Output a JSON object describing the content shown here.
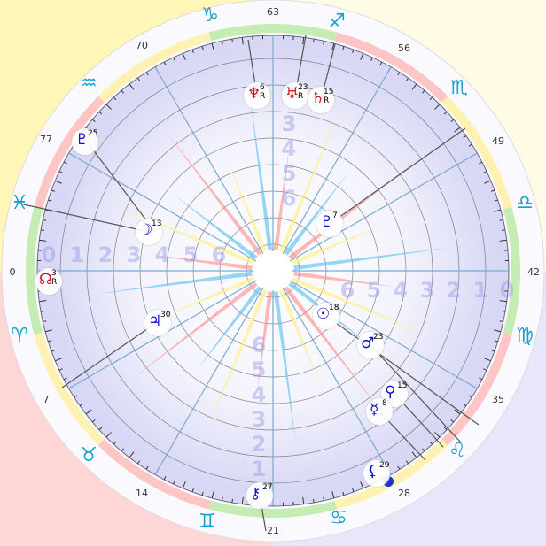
{
  "background_corners": {
    "top_left": "#fff6b8",
    "top_right": "#fffbe6",
    "bottom_left": "#ffd6d6",
    "bottom_right": "#e8e6fa"
  },
  "colors": {
    "disc": "#d8d8f6",
    "sign_glyph": "#1aa0d0",
    "planet_blue": "#1010c8",
    "planet_red": "#d01010",
    "house_line": "#7aaad0"
  },
  "zodiac_signs": [
    {
      "name": "capricorn",
      "glyph": "♑"
    },
    {
      "name": "sagittarius",
      "glyph": "♐"
    },
    {
      "name": "scorpio",
      "glyph": "♏"
    },
    {
      "name": "libra",
      "glyph": "♎"
    },
    {
      "name": "virgo",
      "glyph": "♍"
    },
    {
      "name": "leo",
      "glyph": "♌"
    },
    {
      "name": "cancer",
      "glyph": "♋"
    },
    {
      "name": "gemini",
      "glyph": "♊"
    },
    {
      "name": "taurus",
      "glyph": "♉"
    },
    {
      "name": "aries",
      "glyph": "♈"
    },
    {
      "name": "pisces",
      "glyph": "♓"
    },
    {
      "name": "aquarius",
      "glyph": "♒"
    }
  ],
  "degree_labels": [
    "63",
    "56",
    "49",
    "42",
    "35",
    "28",
    "21",
    "14",
    "7",
    "0",
    "77",
    "70"
  ],
  "ring_numbers": {
    "left": [
      "0",
      "1",
      "2",
      "3",
      "4",
      "5",
      "6"
    ],
    "right": [
      "6",
      "5",
      "4",
      "3",
      "2",
      "1",
      "0"
    ],
    "top": [
      "3",
      "4",
      "5",
      "6"
    ],
    "bottom": [
      "6",
      "5",
      "4",
      "3",
      "2",
      "1"
    ]
  },
  "planets": [
    {
      "name": "neptune",
      "glyph": "♆",
      "degree": "6",
      "retro": "R",
      "color": "#d01010"
    },
    {
      "name": "uranus",
      "glyph": "♅",
      "degree": "23",
      "retro": "R",
      "color": "#d01010"
    },
    {
      "name": "saturn",
      "glyph": "♄",
      "degree": "15",
      "retro": "R",
      "color": "#d01010"
    },
    {
      "name": "pluto-25",
      "glyph": "♇",
      "degree": "25",
      "retro": "",
      "color": "#1010c8"
    },
    {
      "name": "pluto-7",
      "glyph": "♇",
      "degree": "7",
      "retro": "",
      "color": "#1010c8"
    },
    {
      "name": "moon",
      "glyph": "☽",
      "degree": "13",
      "retro": "",
      "color": "#1010c8"
    },
    {
      "name": "north-node",
      "glyph": "☊",
      "degree": "3",
      "retro": "R",
      "color": "#d01010"
    },
    {
      "name": "jupiter",
      "glyph": "♃",
      "degree": "30",
      "retro": "",
      "color": "#1010c8"
    },
    {
      "name": "sun",
      "glyph": "☉",
      "degree": "18",
      "retro": "",
      "color": "#1010c8"
    },
    {
      "name": "mars",
      "glyph": "♂",
      "degree": "23",
      "retro": "",
      "color": "#1010c8"
    },
    {
      "name": "venus",
      "glyph": "♀",
      "degree": "15",
      "retro": "",
      "color": "#1010c8"
    },
    {
      "name": "mercury",
      "glyph": "☿",
      "degree": "8",
      "retro": "",
      "color": "#1010c8"
    },
    {
      "name": "lilith",
      "glyph": "⚸",
      "degree": "29",
      "retro": "",
      "color": "#1010c8"
    },
    {
      "name": "chiron",
      "glyph": "⚷",
      "degree": "27",
      "retro": "",
      "color": "#1010c8"
    }
  ]
}
